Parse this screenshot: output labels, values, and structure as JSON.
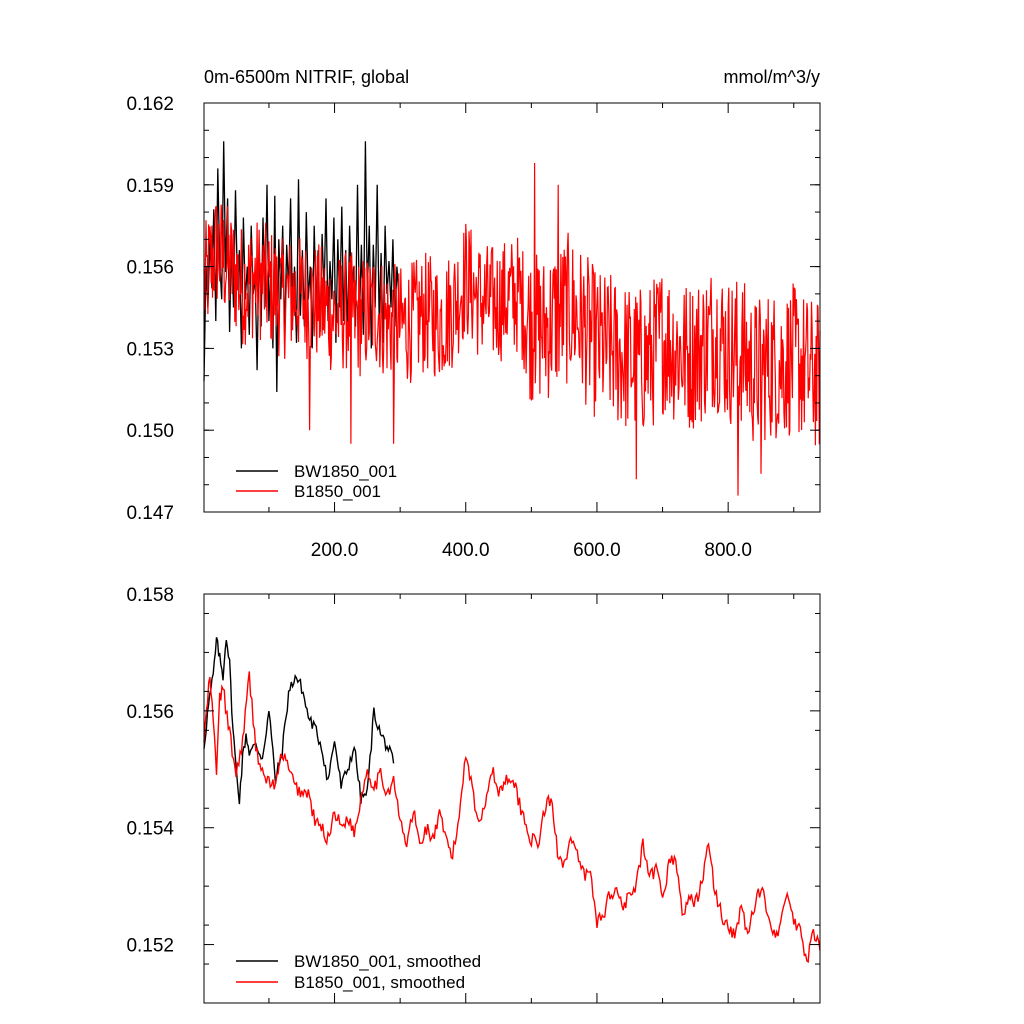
{
  "figure": {
    "title_left": "0m-6500m NITRIF, global",
    "title_right": "mmol/m^3/y"
  },
  "chart_data": [
    {
      "type": "line",
      "id": "raw",
      "title": "0m-6500m NITRIF, global",
      "units": "mmol/m^3/y",
      "xlim": [
        1,
        940
      ],
      "ylim": [
        0.147,
        0.162
      ],
      "xticks": [
        200,
        400,
        600,
        800
      ],
      "xtick_labels": [
        "200.0",
        "400.0",
        "600.0",
        "800.0"
      ],
      "yticks": [
        0.147,
        0.15,
        0.153,
        0.156,
        0.159,
        0.162
      ],
      "ytick_labels": [
        "0.147",
        "0.150",
        "0.153",
        "0.156",
        "0.159",
        "0.162"
      ],
      "legend": [
        "BW1850_001",
        "B1850_001"
      ],
      "series": [
        {
          "name": "BW1850_001",
          "color": "#000000",
          "x_start": 1,
          "x_step": 3,
          "values": [
            0.1518,
            0.156,
            0.1545,
            0.157,
            0.1552,
            0.1581,
            0.154,
            0.1596,
            0.1562,
            0.1548,
            0.1606,
            0.1558,
            0.1585,
            0.1536,
            0.1572,
            0.1545,
            0.1588,
            0.1552,
            0.1566,
            0.153,
            0.1578,
            0.1548,
            0.156,
            0.1535,
            0.1575,
            0.155,
            0.1556,
            0.1522,
            0.1568,
            0.1538,
            0.1578,
            0.1545,
            0.159,
            0.154,
            0.1562,
            0.153,
            0.1586,
            0.1514,
            0.157,
            0.1548,
            0.1575,
            0.1535,
            0.1568,
            0.1552,
            0.1585,
            0.154,
            0.156,
            0.1532,
            0.1592,
            0.1542,
            0.1566,
            0.1538,
            0.158,
            0.1548,
            0.156,
            0.153,
            0.1575,
            0.1544,
            0.1566,
            0.1536,
            0.1572,
            0.155,
            0.1585,
            0.154,
            0.1562,
            0.1548,
            0.1578,
            0.1532,
            0.157,
            0.1545,
            0.1582,
            0.154,
            0.1566,
            0.1535,
            0.1575,
            0.1548,
            0.156,
            0.1538,
            0.159,
            0.1542,
            0.1568,
            0.1535,
            0.1606,
            0.155,
            0.1575,
            0.153,
            0.1568,
            0.1545,
            0.159,
            0.154,
            0.1565,
            0.1532,
            0.1575,
            0.155,
            0.1562,
            0.1545,
            0.157,
            0.1538,
            0.156,
            0.155
          ]
        },
        {
          "name": "B1850_001",
          "color": "#ff0000",
          "x_start": 1,
          "x_step": 1,
          "anchors_x": [
            1,
            10,
            20,
            40,
            60,
            80,
            100,
            120,
            140,
            160,
            180,
            200,
            220,
            240,
            260,
            280,
            300,
            320,
            340,
            360,
            380,
            400,
            420,
            440,
            460,
            480,
            490,
            500,
            520,
            540,
            560,
            580,
            600,
            620,
            640,
            660,
            680,
            700,
            720,
            740,
            760,
            780,
            800,
            820,
            840,
            860,
            880,
            900,
            920,
            940
          ],
          "anchors_y": [
            0.1552,
            0.156,
            0.1566,
            0.156,
            0.1553,
            0.1556,
            0.1553,
            0.1548,
            0.155,
            0.1548,
            0.1546,
            0.1542,
            0.1544,
            0.1541,
            0.1545,
            0.154,
            0.1538,
            0.154,
            0.1543,
            0.154,
            0.1545,
            0.1556,
            0.1548,
            0.1546,
            0.1548,
            0.155,
            0.1544,
            0.1538,
            0.1537,
            0.1542,
            0.1545,
            0.1538,
            0.1531,
            0.153,
            0.1527,
            0.1525,
            0.1526,
            0.1534,
            0.153,
            0.1527,
            0.153,
            0.1536,
            0.1529,
            0.1529,
            0.1521,
            0.1524,
            0.1524,
            0.1526,
            0.1522,
            0.1519
          ],
          "noise_amplitude": 0.003,
          "spikes": [
            [
              162,
              0.15
            ],
            [
              225,
              0.1495
            ],
            [
              290,
              0.1495
            ],
            [
              505,
              0.1598
            ],
            [
              541,
              0.159
            ],
            [
              815,
              0.1476
            ],
            [
              850,
              0.1484
            ],
            [
              660,
              0.1482
            ]
          ]
        }
      ]
    },
    {
      "type": "line",
      "id": "smoothed",
      "xlim": [
        1,
        940
      ],
      "ylim": [
        0.151,
        0.158
      ],
      "yticks": [
        0.152,
        0.154,
        0.156,
        0.158
      ],
      "ytick_labels": [
        "0.152",
        "0.154",
        "0.156",
        "0.158"
      ],
      "legend": [
        "BW1850_001, smoothed",
        "B1850_001, smoothed"
      ],
      "series": [
        {
          "name": "BW1850_001, smoothed",
          "color": "#000000",
          "x": [
            1,
            8,
            15,
            20,
            25,
            30,
            35,
            40,
            45,
            50,
            55,
            60,
            65,
            70,
            80,
            90,
            100,
            110,
            120,
            130,
            140,
            150,
            160,
            170,
            180,
            190,
            200,
            210,
            220,
            230,
            240,
            250,
            260,
            270,
            280,
            290
          ],
          "y": [
            0.1554,
            0.1561,
            0.1566,
            0.1572,
            0.1569,
            0.1566,
            0.1573,
            0.1568,
            0.1557,
            0.155,
            0.1545,
            0.1552,
            0.1556,
            0.1553,
            0.1554,
            0.1552,
            0.156,
            0.1548,
            0.1553,
            0.1563,
            0.1566,
            0.1564,
            0.1559,
            0.1557,
            0.1554,
            0.1548,
            0.1555,
            0.1547,
            0.155,
            0.1554,
            0.1545,
            0.1546,
            0.156,
            0.1556,
            0.1554,
            0.1551
          ]
        },
        {
          "name": "B1850_001, smoothed",
          "color": "#ff0000",
          "x": [
            1,
            10,
            15,
            20,
            25,
            30,
            40,
            50,
            60,
            70,
            80,
            90,
            100,
            110,
            120,
            130,
            140,
            150,
            160,
            170,
            180,
            190,
            200,
            210,
            220,
            230,
            240,
            250,
            260,
            270,
            280,
            290,
            300,
            310,
            320,
            330,
            340,
            350,
            360,
            370,
            380,
            390,
            400,
            410,
            420,
            430,
            440,
            450,
            460,
            470,
            480,
            490,
            500,
            510,
            520,
            530,
            540,
            550,
            560,
            570,
            580,
            590,
            600,
            610,
            620,
            630,
            640,
            650,
            660,
            670,
            680,
            690,
            700,
            710,
            720,
            730,
            740,
            750,
            760,
            770,
            780,
            790,
            800,
            810,
            820,
            830,
            840,
            850,
            860,
            870,
            880,
            890,
            900,
            910,
            920,
            930,
            940
          ],
          "y": [
            0.1555,
            0.1566,
            0.1558,
            0.155,
            0.1562,
            0.1564,
            0.1556,
            0.1549,
            0.1555,
            0.1566,
            0.1554,
            0.1549,
            0.1548,
            0.1547,
            0.1553,
            0.155,
            0.1547,
            0.1546,
            0.1546,
            0.1541,
            0.154,
            0.1538,
            0.1543,
            0.154,
            0.1542,
            0.1539,
            0.1545,
            0.155,
            0.1547,
            0.1549,
            0.1546,
            0.1548,
            0.1541,
            0.1537,
            0.1543,
            0.1537,
            0.154,
            0.1538,
            0.1542,
            0.1538,
            0.1535,
            0.1542,
            0.1553,
            0.1547,
            0.154,
            0.1545,
            0.155,
            0.1546,
            0.1548,
            0.1549,
            0.1545,
            0.1541,
            0.1538,
            0.1537,
            0.1543,
            0.1545,
            0.1536,
            0.1534,
            0.1538,
            0.1535,
            0.1532,
            0.1532,
            0.1524,
            0.1525,
            0.1529,
            0.1529,
            0.1527,
            0.1528,
            0.153,
            0.1537,
            0.1531,
            0.1533,
            0.1528,
            0.1534,
            0.1535,
            0.1525,
            0.1528,
            0.1527,
            0.1531,
            0.1537,
            0.1529,
            0.1525,
            0.1523,
            0.1522,
            0.1526,
            0.1522,
            0.1526,
            0.153,
            0.1526,
            0.1522,
            0.1523,
            0.1529,
            0.1524,
            0.1522,
            0.1517,
            0.1522,
            0.1519
          ]
        }
      ]
    }
  ]
}
